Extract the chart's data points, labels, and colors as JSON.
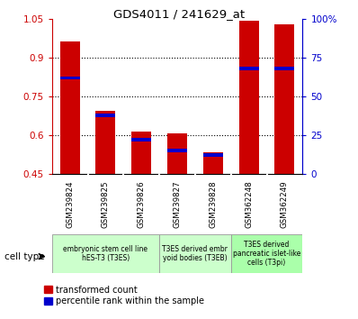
{
  "title": "GDS4011 / 241629_at",
  "samples": [
    "GSM239824",
    "GSM239825",
    "GSM239826",
    "GSM239827",
    "GSM239828",
    "GSM362248",
    "GSM362249"
  ],
  "transformed_count": [
    0.965,
    0.695,
    0.615,
    0.608,
    0.535,
    1.045,
    1.03
  ],
  "percentile_rank": [
    62,
    38,
    22,
    15,
    12,
    68,
    68
  ],
  "ylim_left": [
    0.45,
    1.05
  ],
  "ylim_right": [
    0,
    100
  ],
  "yticks_left": [
    0.45,
    0.6,
    0.75,
    0.9,
    1.05
  ],
  "yticks_right": [
    0,
    25,
    50,
    75,
    100
  ],
  "ytick_labels_left": [
    "0.45",
    "0.6",
    "0.75",
    "0.9",
    "1.05"
  ],
  "ytick_labels_right": [
    "0",
    "25",
    "50",
    "75",
    "100%"
  ],
  "bar_color": "#cc0000",
  "marker_color": "#0000cc",
  "bar_width": 0.55,
  "cell_type_groups": [
    {
      "label": "embryonic stem cell line\nhES-T3 (T3ES)",
      "indices": [
        0,
        1,
        2
      ],
      "color": "#ccffcc"
    },
    {
      "label": "T3ES derived embr\nyoid bodies (T3EB)",
      "indices": [
        3,
        4
      ],
      "color": "#ccffcc"
    },
    {
      "label": "T3ES derived\npancreatic islet-like\ncells (T3pi)",
      "indices": [
        5,
        6
      ],
      "color": "#aaffaa"
    }
  ],
  "legend_red": "transformed count",
  "legend_blue": "percentile rank within the sample",
  "cell_type_label": "cell type",
  "bg_color": "#ffffff",
  "tick_label_color_left": "#cc0000",
  "tick_label_color_right": "#0000cc",
  "sample_box_color": "#cccccc",
  "grid_dotted_vals": [
    0.6,
    0.75,
    0.9
  ]
}
